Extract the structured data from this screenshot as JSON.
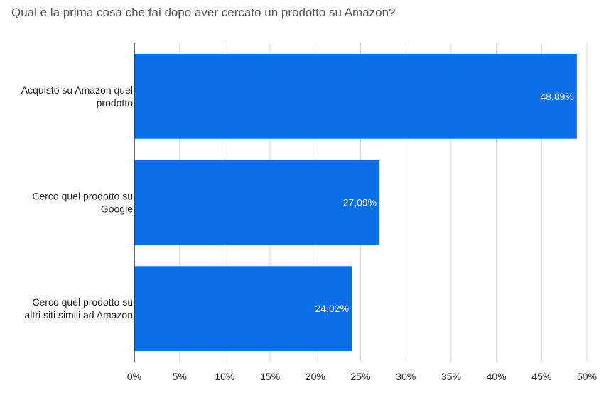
{
  "chart_data": {
    "type": "bar",
    "orientation": "horizontal",
    "title": "Qual è la prima cosa che fai dopo aver cercato un prodotto su Amazon?",
    "categories": [
      [
        "Acquisto su Amazon quel",
        "prodotto"
      ],
      [
        "Cerco quel prodotto su",
        "Google"
      ],
      [
        "Cerco quel prodotto su",
        "altri siti simili ad Amazon"
      ]
    ],
    "values": [
      48.89,
      27.09,
      24.02
    ],
    "data_labels": [
      "48,89%",
      "27,09%",
      "24,02%"
    ],
    "xlim": [
      0,
      50
    ],
    "ticks": [
      0,
      5,
      10,
      15,
      20,
      25,
      30,
      35,
      40,
      45,
      50
    ],
    "tick_labels": [
      "0%",
      "5%",
      "10%",
      "15%",
      "20%",
      "25%",
      "30%",
      "35%",
      "40%",
      "45%",
      "50%"
    ],
    "grid": true,
    "legend": "none",
    "colors": {
      "bar": "#0b6fe8",
      "grid": "#dddddd",
      "axis": "#333333"
    }
  }
}
